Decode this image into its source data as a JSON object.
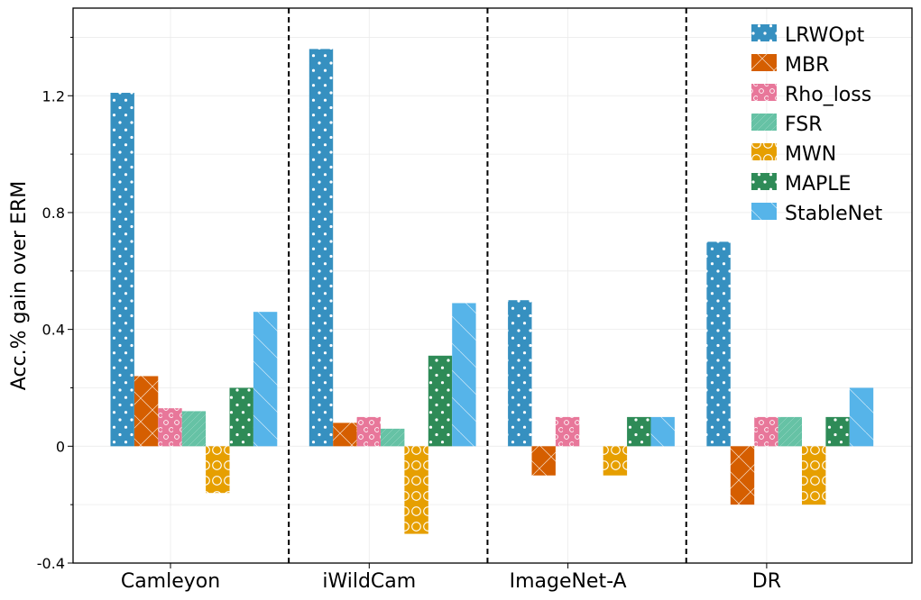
{
  "chart_data": {
    "type": "bar",
    "title": "",
    "xlabel": "",
    "ylabel": "Acc.% gain over ERM",
    "ylim": [
      -0.4,
      1.5
    ],
    "yticks": [
      -0.4,
      0,
      0.4,
      0.8,
      1.2
    ],
    "ytick_labels": [
      "-0.4",
      "0",
      "0.4",
      "0.8",
      "1.2"
    ],
    "grid": true,
    "legend_position": "top-right",
    "categories": [
      "Camleyon",
      "iWildCam",
      "ImageNet-A",
      "DR"
    ],
    "series": [
      {
        "name": "LRWOpt",
        "color": "#3690c0",
        "pattern": "dots",
        "values": [
          1.21,
          1.36,
          0.5,
          0.7
        ]
      },
      {
        "name": "MBR",
        "color": "#d55e00",
        "pattern": "crosshatch",
        "values": [
          0.24,
          0.08,
          -0.1,
          -0.2
        ]
      },
      {
        "name": "Rho_loss",
        "color": "#e8779a",
        "pattern": "small-circles",
        "values": [
          0.13,
          0.1,
          0.1,
          0.1
        ]
      },
      {
        "name": "FSR",
        "color": "#66c2a5",
        "pattern": "fine-lines",
        "values": [
          0.12,
          0.06,
          0.0,
          0.1
        ]
      },
      {
        "name": "MWN",
        "color": "#e69f00",
        "pattern": "big-circles",
        "values": [
          -0.16,
          -0.3,
          -0.1,
          -0.2
        ]
      },
      {
        "name": "MAPLE",
        "color": "#2e8b57",
        "pattern": "dots",
        "values": [
          0.2,
          0.31,
          0.1,
          0.1
        ]
      },
      {
        "name": "StableNet",
        "color": "#56b4e9",
        "pattern": "diagonal",
        "values": [
          0.46,
          0.49,
          0.1,
          0.2
        ]
      }
    ]
  }
}
